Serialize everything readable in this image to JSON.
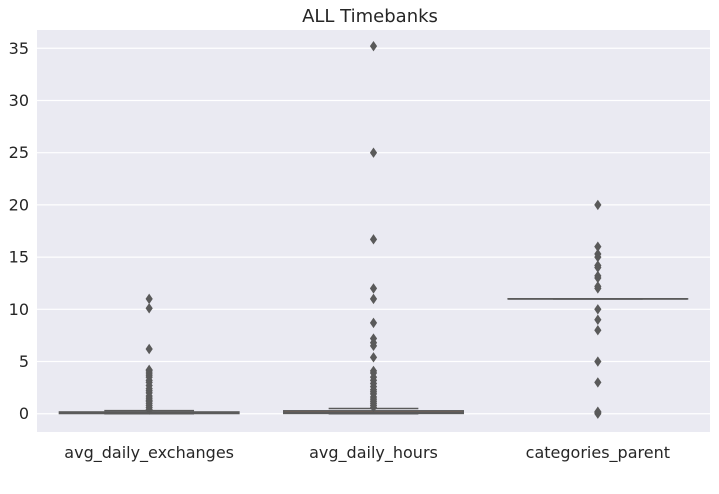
{
  "chart_data": {
    "type": "box",
    "title": "ALL Timebanks",
    "xlabel": "",
    "ylabel": "",
    "categories": [
      "avg_daily_exchanges",
      "avg_daily_hours",
      "categories_parent"
    ],
    "ylim": [
      -1.75,
      36.75
    ],
    "yticks": [
      0,
      5,
      10,
      15,
      20,
      25,
      30,
      35
    ],
    "grid": true,
    "colors": {
      "background": "#eaeaf2",
      "grid": "#ffffff",
      "box_line": "#5a5a5a",
      "box_fills": [
        "#5976b4",
        "#dd8452",
        "#55a868"
      ]
    },
    "boxes": [
      {
        "name": "avg_daily_exchanges",
        "q1": 0.02,
        "median": 0.08,
        "q3": 0.17,
        "whisker_low": 0.0,
        "whisker_high": 0.3,
        "outliers": [
          0.4,
          0.6,
          0.8,
          1.0,
          1.2,
          1.3,
          1.5,
          1.7,
          2.0,
          2.2,
          2.4,
          2.7,
          3.0,
          3.2,
          3.5,
          3.7,
          3.9,
          4.1,
          4.2,
          6.2,
          10.1,
          11.0
        ]
      },
      {
        "name": "avg_daily_hours",
        "q1": 0.03,
        "median": 0.12,
        "q3": 0.28,
        "whisker_low": 0.0,
        "whisker_high": 0.5,
        "outliers": [
          0.6,
          0.8,
          1.0,
          1.2,
          1.4,
          1.6,
          1.9,
          2.1,
          2.3,
          2.6,
          2.9,
          3.2,
          3.5,
          3.9,
          4.1,
          5.4,
          6.5,
          6.8,
          7.2,
          8.7,
          11.0,
          12.0,
          16.7,
          25.0,
          35.2
        ]
      },
      {
        "name": "categories_parent",
        "q1": 11.0,
        "median": 11.0,
        "q3": 11.0,
        "whisker_low": 11.0,
        "whisker_high": 11.0,
        "outliers": [
          0.0,
          0.1,
          0.2,
          3.0,
          5.0,
          8.0,
          9.0,
          10.0,
          12.0,
          12.2,
          13.0,
          13.2,
          14.0,
          14.2,
          15.0,
          15.3,
          16.0,
          20.0
        ]
      }
    ]
  }
}
